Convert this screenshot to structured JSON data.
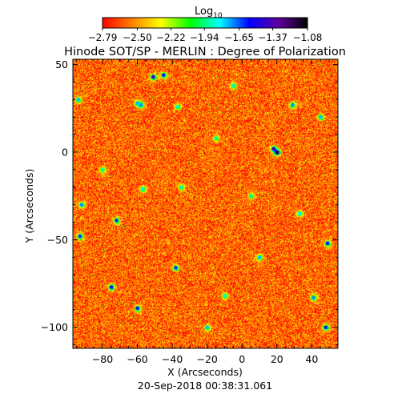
{
  "chart_data": {
    "type": "heatmap",
    "title": "Hinode SOT/SP - MERLIN : Degree of Polarization",
    "xlabel": "X (Arcseconds)",
    "ylabel": "Y (Arcseconds)",
    "xlim": [
      -97,
      55
    ],
    "ylim": [
      -112,
      53
    ],
    "x_ticks": [
      -80,
      -60,
      -40,
      -20,
      0,
      20,
      40
    ],
    "y_ticks": [
      -100,
      -50,
      0,
      50
    ],
    "x_tick_labels": [
      "−80",
      "−60",
      "−40",
      "−20",
      "0",
      "20",
      "40"
    ],
    "y_tick_labels": [
      "−100",
      "−50",
      "0",
      "50"
    ],
    "colorbar": {
      "label_base": "Log",
      "label_sub": "10",
      "ticks": [
        -2.79,
        -2.5,
        -2.22,
        -1.94,
        -1.65,
        -1.37,
        -1.08
      ],
      "tick_labels": [
        "−2.79",
        "−2.50",
        "−2.22",
        "−1.94",
        "−1.65",
        "−1.37",
        "−1.08"
      ],
      "range": [
        -2.79,
        -1.08
      ],
      "colormap": [
        "#ff0000",
        "#ff8000",
        "#ffff00",
        "#00ff00",
        "#00ffff",
        "#0000ff",
        "#6000a0",
        "#000000"
      ]
    },
    "grid": false,
    "legend": "none",
    "field_background_value": -2.6,
    "field_texture": "fine-grained noise, mostly orange-red with yellow speckle",
    "features": [
      {
        "x": 20,
        "y": 0,
        "value": -1.15
      },
      {
        "x": 18,
        "y": 2,
        "value": -1.3
      },
      {
        "x": -51,
        "y": 43,
        "value": -1.4
      },
      {
        "x": -45,
        "y": 44,
        "value": -1.55
      },
      {
        "x": -58,
        "y": 27,
        "value": -1.7
      },
      {
        "x": -60,
        "y": 28,
        "value": -1.75
      },
      {
        "x": -37,
        "y": 26,
        "value": -1.85
      },
      {
        "x": 29,
        "y": 27,
        "value": -1.7
      },
      {
        "x": 45,
        "y": 20,
        "value": -1.75
      },
      {
        "x": -94,
        "y": 30,
        "value": -1.75
      },
      {
        "x": -92,
        "y": -30,
        "value": -1.7
      },
      {
        "x": -93,
        "y": -48,
        "value": -1.6
      },
      {
        "x": -72,
        "y": -39,
        "value": -1.6
      },
      {
        "x": -57,
        "y": -21,
        "value": -1.8
      },
      {
        "x": -35,
        "y": -20,
        "value": -1.9
      },
      {
        "x": -75,
        "y": -77,
        "value": -1.45
      },
      {
        "x": -60,
        "y": -89,
        "value": -1.55
      },
      {
        "x": -38,
        "y": -66,
        "value": -1.6
      },
      {
        "x": 10,
        "y": -60,
        "value": -1.75
      },
      {
        "x": 49,
        "y": -52,
        "value": -1.5
      },
      {
        "x": 41,
        "y": -83,
        "value": -1.7
      },
      {
        "x": 48,
        "y": -100,
        "value": -1.55
      },
      {
        "x": -20,
        "y": -100,
        "value": -1.75
      },
      {
        "x": -5,
        "y": 38,
        "value": -1.85
      },
      {
        "x": 5,
        "y": -25,
        "value": -1.9
      },
      {
        "x": -15,
        "y": 8,
        "value": -1.9
      },
      {
        "x": 33,
        "y": -35,
        "value": -1.8
      },
      {
        "x": -80,
        "y": -10,
        "value": -1.9
      },
      {
        "x": -10,
        "y": -82,
        "value": -1.85
      }
    ]
  },
  "footer": {
    "timestamp": "20-Sep-2018 00:38:31.061"
  }
}
